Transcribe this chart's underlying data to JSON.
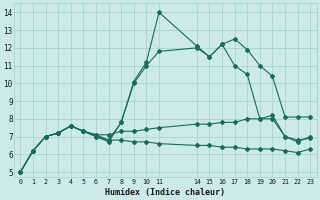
{
  "xlabel": "Humidex (Indice chaleur)",
  "bg_color": "#cceae7",
  "grid_color": "#aad4d0",
  "line_color": "#1a6b5e",
  "xlim": [
    -0.5,
    23.5
  ],
  "ylim": [
    4.7,
    14.5
  ],
  "yticks": [
    5,
    6,
    7,
    8,
    9,
    10,
    11,
    12,
    13,
    14
  ],
  "xtick_positions": [
    0,
    1,
    2,
    3,
    4,
    5,
    6,
    7,
    8,
    9,
    10,
    11,
    14,
    15,
    16,
    17,
    18,
    19,
    20,
    21,
    22,
    23
  ],
  "xtick_labels": [
    "0",
    "1",
    "2",
    "3",
    "4",
    "5",
    "6",
    "7",
    "8",
    "9",
    "10",
    "11",
    "14",
    "15",
    "16",
    "17",
    "18",
    "19",
    "20",
    "21",
    "22",
    "23"
  ],
  "series1_x": [
    0,
    1,
    2,
    3,
    4,
    5,
    6,
    7,
    8,
    9,
    10,
    11,
    14,
    15,
    16,
    17,
    18,
    19,
    20,
    21,
    22,
    23
  ],
  "series1_y": [
    5.0,
    6.2,
    7.0,
    7.2,
    7.6,
    7.3,
    7.0,
    6.7,
    7.8,
    10.0,
    11.0,
    11.8,
    12.0,
    11.5,
    12.2,
    12.5,
    11.9,
    11.0,
    10.4,
    8.1,
    8.1,
    8.1
  ],
  "series2_x": [
    0,
    1,
    2,
    3,
    4,
    5,
    6,
    7,
    8,
    9,
    10,
    11,
    14,
    15,
    16,
    17,
    18,
    19,
    20,
    21,
    22,
    23
  ],
  "series2_y": [
    5.0,
    6.2,
    7.0,
    7.2,
    7.6,
    7.3,
    7.1,
    6.8,
    7.8,
    10.1,
    11.2,
    14.0,
    12.1,
    11.5,
    12.2,
    11.0,
    10.5,
    8.0,
    8.2,
    7.0,
    6.7,
    7.0
  ],
  "series3_x": [
    0,
    1,
    2,
    3,
    4,
    5,
    6,
    7,
    8,
    9,
    10,
    11,
    14,
    15,
    16,
    17,
    18,
    19,
    20,
    21,
    22,
    23
  ],
  "series3_y": [
    5.0,
    6.2,
    7.0,
    7.2,
    7.6,
    7.3,
    7.1,
    7.1,
    7.3,
    7.3,
    7.4,
    7.5,
    7.7,
    7.7,
    7.8,
    7.8,
    8.0,
    8.0,
    8.0,
    7.0,
    6.8,
    6.9
  ],
  "series4_x": [
    0,
    1,
    2,
    3,
    4,
    5,
    6,
    7,
    8,
    9,
    10,
    11,
    14,
    15,
    16,
    17,
    18,
    19,
    20,
    21,
    22,
    23
  ],
  "series4_y": [
    5.0,
    6.2,
    7.0,
    7.2,
    7.6,
    7.3,
    7.0,
    6.8,
    6.8,
    6.7,
    6.7,
    6.6,
    6.5,
    6.5,
    6.4,
    6.4,
    6.3,
    6.3,
    6.3,
    6.2,
    6.1,
    6.3
  ]
}
